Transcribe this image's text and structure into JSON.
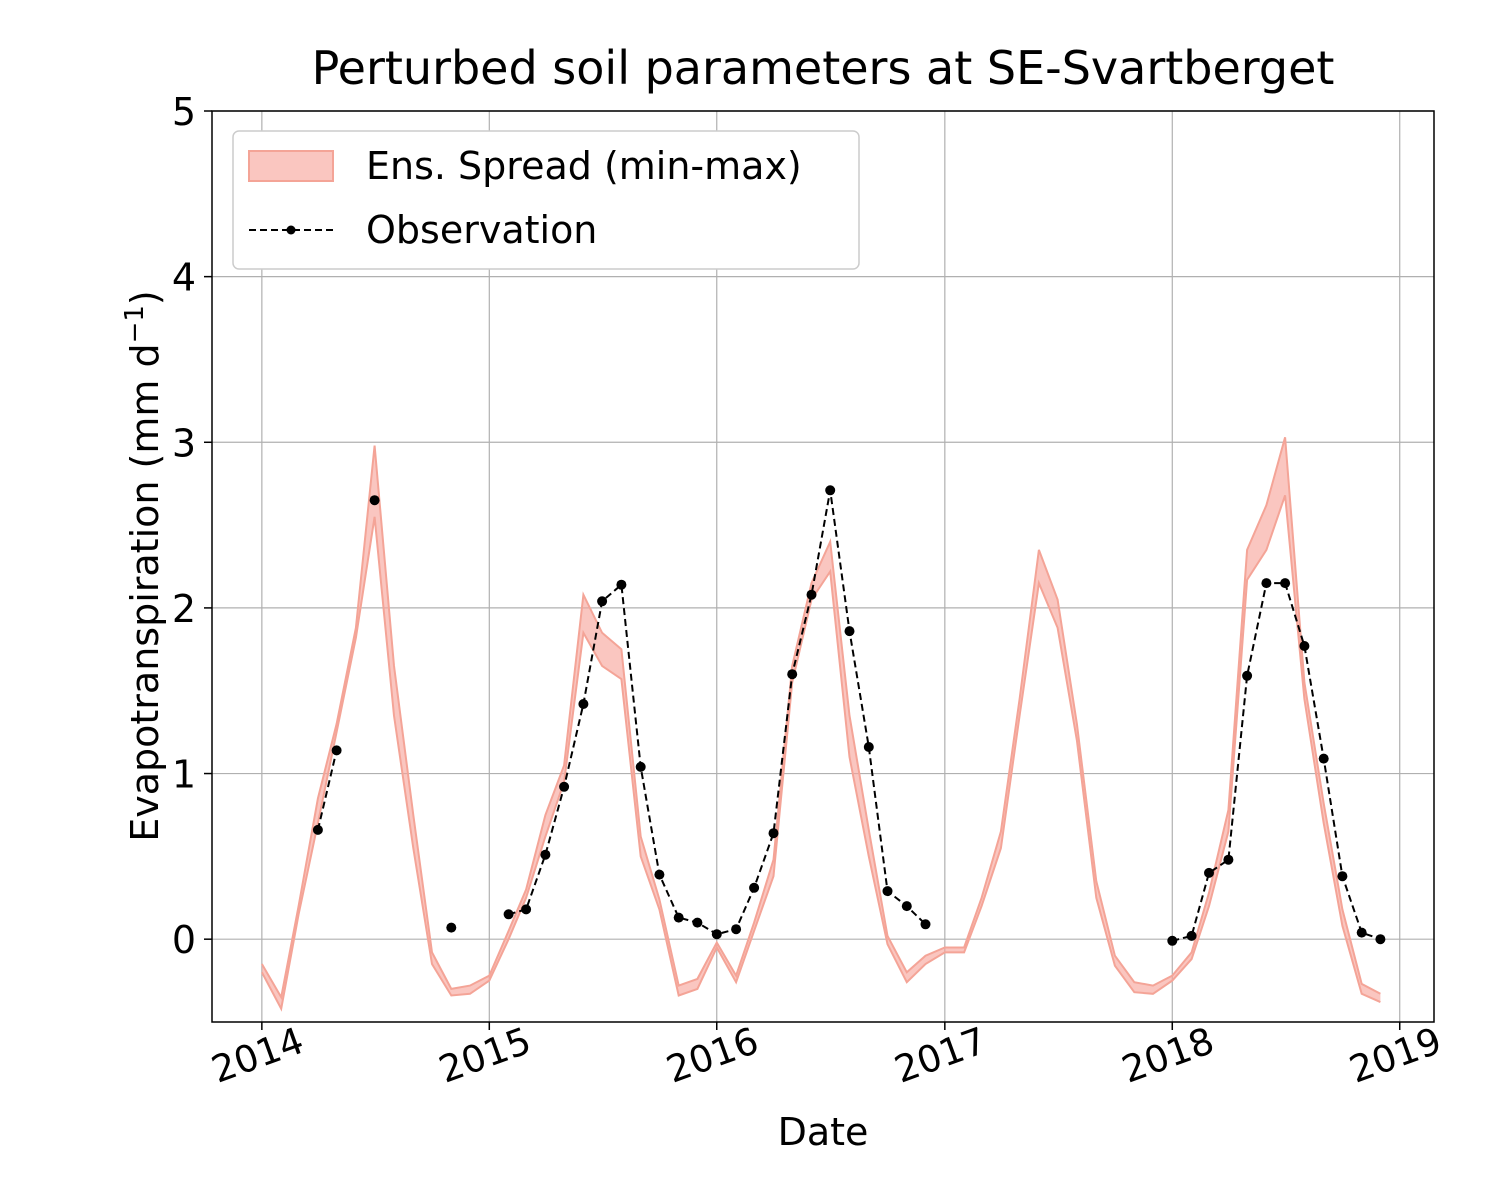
{
  "chart_data": {
    "type": "area",
    "title": "Perturbed soil parameters at SE-Svartberget",
    "xlabel": "Date",
    "ylabel": "Evapotranspiration  (mm d⁻¹)",
    "ylabel_main": "Evapotranspiration  (mm d",
    "ylabel_sup": "−1",
    "ylabel_close": ")",
    "xlim": [
      "2013-10-13",
      "2019-02-25"
    ],
    "ylim": [
      -0.5,
      5.0
    ],
    "yticks": [
      0,
      1,
      2,
      3,
      4,
      5
    ],
    "xticks": [
      {
        "date": "2014-01-01",
        "label": "2014"
      },
      {
        "date": "2015-01-01",
        "label": "2015"
      },
      {
        "date": "2016-01-01",
        "label": "2016"
      },
      {
        "date": "2017-01-01",
        "label": "2017"
      },
      {
        "date": "2018-01-01",
        "label": "2018"
      },
      {
        "date": "2019-01-01",
        "label": "2019"
      }
    ],
    "grid": true,
    "legend_position": "upper-left",
    "legend": [
      "Ens. Spread (min-max)",
      "Observation"
    ],
    "colors": {
      "spread_fill": "#f7a399",
      "spread_edge": "#f4a497",
      "observation": "#000000"
    },
    "series": [
      {
        "name": "Ens. Spread (min-max)",
        "kind": "band",
        "x": [
          "2014-01-01",
          "2014-02-01",
          "2014-03-01",
          "2014-04-01",
          "2014-05-01",
          "2014-06-01",
          "2014-07-01",
          "2014-08-01",
          "2014-09-01",
          "2014-10-01",
          "2014-11-01",
          "2014-12-01",
          "2015-01-01",
          "2015-02-01",
          "2015-03-01",
          "2015-04-01",
          "2015-05-01",
          "2015-06-01",
          "2015-07-01",
          "2015-08-01",
          "2015-09-01",
          "2015-10-01",
          "2015-11-01",
          "2015-12-01",
          "2016-01-01",
          "2016-02-01",
          "2016-03-01",
          "2016-04-01",
          "2016-05-01",
          "2016-06-01",
          "2016-07-01",
          "2016-08-01",
          "2016-09-01",
          "2016-10-01",
          "2016-11-01",
          "2016-12-01",
          "2017-01-01",
          "2017-02-01",
          "2017-03-01",
          "2017-04-01",
          "2017-05-01",
          "2017-06-01",
          "2017-07-01",
          "2017-08-01",
          "2017-09-01",
          "2017-10-01",
          "2017-11-01",
          "2017-12-01",
          "2018-01-01",
          "2018-02-01",
          "2018-03-01",
          "2018-04-01",
          "2018-05-01",
          "2018-06-01",
          "2018-07-01",
          "2018-08-01",
          "2018-09-01",
          "2018-10-01",
          "2018-11-01",
          "2018-12-01"
        ],
        "lower": [
          -0.2,
          -0.42,
          0.15,
          0.7,
          1.25,
          1.82,
          2.55,
          1.35,
          0.55,
          -0.15,
          -0.34,
          -0.33,
          -0.25,
          0.0,
          0.25,
          0.62,
          0.95,
          1.85,
          1.65,
          1.57,
          0.5,
          0.18,
          -0.34,
          -0.3,
          -0.05,
          -0.26,
          0.05,
          0.38,
          1.55,
          2.05,
          2.22,
          1.1,
          0.5,
          -0.03,
          -0.26,
          -0.15,
          -0.08,
          -0.08,
          0.2,
          0.55,
          1.35,
          2.15,
          1.88,
          1.2,
          0.25,
          -0.16,
          -0.32,
          -0.33,
          -0.25,
          -0.12,
          0.2,
          0.65,
          2.17,
          2.35,
          2.68,
          1.45,
          0.7,
          0.08,
          -0.33,
          -0.38
        ],
        "upper": [
          -0.15,
          -0.35,
          0.2,
          0.85,
          1.3,
          1.88,
          2.98,
          1.65,
          0.75,
          -0.08,
          -0.3,
          -0.28,
          -0.22,
          0.05,
          0.3,
          0.75,
          1.05,
          2.08,
          1.85,
          1.75,
          0.62,
          0.24,
          -0.28,
          -0.24,
          -0.02,
          -0.22,
          0.1,
          0.48,
          1.65,
          2.15,
          2.4,
          1.35,
          0.66,
          0.02,
          -0.2,
          -0.1,
          -0.05,
          -0.05,
          0.25,
          0.65,
          1.45,
          2.35,
          2.05,
          1.3,
          0.35,
          -0.1,
          -0.26,
          -0.28,
          -0.22,
          -0.08,
          0.28,
          0.78,
          2.35,
          2.62,
          3.03,
          1.55,
          0.82,
          0.18,
          -0.27,
          -0.33
        ]
      },
      {
        "name": "Observation",
        "kind": "line-dashed-markers",
        "points": [
          {
            "x": "2014-04-01",
            "y": 0.66
          },
          {
            "x": "2014-05-01",
            "y": 1.14
          },
          null,
          {
            "x": "2014-07-01",
            "y": 2.65
          },
          null,
          {
            "x": "2014-11-01",
            "y": 0.07
          },
          null,
          {
            "x": "2015-02-01",
            "y": 0.15
          },
          {
            "x": "2015-03-01",
            "y": 0.18
          },
          {
            "x": "2015-04-01",
            "y": 0.51
          },
          {
            "x": "2015-05-01",
            "y": 0.92
          },
          {
            "x": "2015-06-01",
            "y": 1.42
          },
          {
            "x": "2015-07-01",
            "y": 2.04
          },
          {
            "x": "2015-08-01",
            "y": 2.14
          },
          {
            "x": "2015-09-01",
            "y": 1.04
          },
          {
            "x": "2015-10-01",
            "y": 0.39
          },
          {
            "x": "2015-11-01",
            "y": 0.13
          },
          {
            "x": "2015-12-01",
            "y": 0.1
          },
          {
            "x": "2016-01-01",
            "y": 0.03
          },
          {
            "x": "2016-02-01",
            "y": 0.06
          },
          {
            "x": "2016-03-01",
            "y": 0.31
          },
          {
            "x": "2016-04-01",
            "y": 0.64
          },
          {
            "x": "2016-05-01",
            "y": 1.6
          },
          {
            "x": "2016-06-01",
            "y": 2.08
          },
          {
            "x": "2016-07-01",
            "y": 2.71
          },
          {
            "x": "2016-08-01",
            "y": 1.86
          },
          {
            "x": "2016-09-01",
            "y": 1.16
          },
          {
            "x": "2016-10-01",
            "y": 0.29
          },
          {
            "x": "2016-11-01",
            "y": 0.2
          },
          {
            "x": "2016-12-01",
            "y": 0.09
          },
          null,
          {
            "x": "2018-01-01",
            "y": -0.01
          },
          {
            "x": "2018-02-01",
            "y": 0.02
          },
          {
            "x": "2018-03-01",
            "y": 0.4
          },
          {
            "x": "2018-04-01",
            "y": 0.48
          },
          {
            "x": "2018-05-01",
            "y": 1.59
          },
          {
            "x": "2018-06-01",
            "y": 2.15
          },
          {
            "x": "2018-07-01",
            "y": 2.15
          },
          {
            "x": "2018-08-01",
            "y": 1.77
          },
          {
            "x": "2018-09-01",
            "y": 1.09
          },
          {
            "x": "2018-10-01",
            "y": 0.38
          },
          {
            "x": "2018-11-01",
            "y": 0.04
          },
          {
            "x": "2018-12-01",
            "y": 0.0
          }
        ]
      }
    ]
  }
}
